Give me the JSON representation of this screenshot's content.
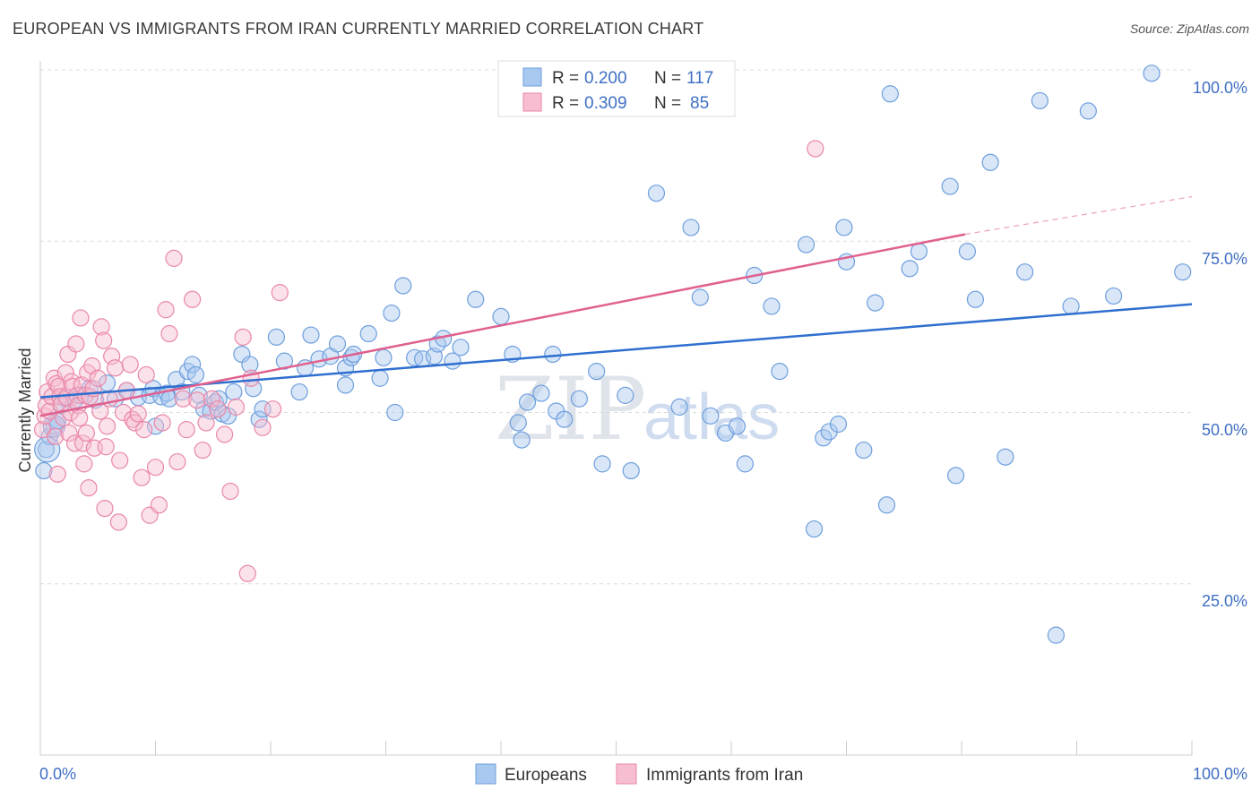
{
  "title": "EUROPEAN VS IMMIGRANTS FROM IRAN CURRENTLY MARRIED CORRELATION CHART",
  "source": "Source: ZipAtlas.com",
  "watermark": {
    "part1": "ZIP",
    "part2": "atlas"
  },
  "legend_top": {
    "rows": [
      {
        "r_label": "R = ",
        "r_value": "0.200",
        "n_label": "N = ",
        "n_value": "117",
        "color": "#a9c8f0"
      },
      {
        "r_label": "R = ",
        "r_value": "0.309",
        "n_label": "N = ",
        "n_value": "85",
        "color": "#f7bdd0"
      }
    ]
  },
  "legend_bottom": {
    "items": [
      "Europeans",
      "Immigrants from Iran"
    ]
  },
  "colors": {
    "blue_fill": "#a9c8f0",
    "blue_stroke": "#6e9fdc",
    "blue_line": "#2f6fcf",
    "pink_fill": "#f7bdd0",
    "pink_stroke": "#e987a8",
    "pink_line": "#e0608f"
  },
  "chart_data": {
    "type": "scatter",
    "title": "EUROPEAN VS IMMIGRANTS FROM IRAN CURRENTLY MARRIED CORRELATION CHART",
    "xlabel": "",
    "ylabel": "Currently Married",
    "xlim": [
      0,
      100
    ],
    "ylim": [
      0,
      100
    ],
    "x_tick_labels": [
      "0.0%",
      "100.0%"
    ],
    "y_tick_labels": [
      "25.0%",
      "50.0%",
      "75.0%",
      "100.0%"
    ],
    "y_ticks": [
      25,
      50,
      75,
      100
    ],
    "grid": true,
    "legend_position": "top-center",
    "series": [
      {
        "name": "Europeans",
        "r": 0.2,
        "n": 117,
        "trend": {
          "x": [
            0,
            100
          ],
          "y": [
            52.2,
            65.8
          ],
          "dashed_from": null
        },
        "points": [
          [
            0.3,
            41.5
          ],
          [
            0.5,
            44.6
          ],
          [
            0.8,
            46.5
          ],
          [
            1.2,
            48.0
          ],
          [
            1.5,
            48.8
          ],
          [
            1.8,
            51.0
          ],
          [
            2.2,
            52.0
          ],
          [
            3,
            51.8
          ],
          [
            3.5,
            52.5
          ],
          [
            4.3,
            53.5
          ],
          [
            4.8,
            51.8
          ],
          [
            5.8,
            54.3
          ],
          [
            6.5,
            52.0
          ],
          [
            7.5,
            53.2
          ],
          [
            8.5,
            52.2
          ],
          [
            9.5,
            52.5
          ],
          [
            9.8,
            53.5
          ],
          [
            10,
            48.0
          ],
          [
            10.5,
            52.3
          ],
          [
            11,
            52.8
          ],
          [
            11.2,
            52.0
          ],
          [
            11.8,
            54.8
          ],
          [
            12.3,
            53.0
          ],
          [
            12.8,
            56.0
          ],
          [
            13.2,
            57.0
          ],
          [
            13.5,
            55.5
          ],
          [
            13.8,
            52.5
          ],
          [
            14.2,
            50.5
          ],
          [
            14.8,
            50.2
          ],
          [
            15.2,
            51.5
          ],
          [
            15.5,
            52.0
          ],
          [
            15.8,
            49.8
          ],
          [
            16.3,
            49.5
          ],
          [
            16.8,
            53.0
          ],
          [
            17.5,
            58.5
          ],
          [
            18.2,
            57.0
          ],
          [
            18.5,
            53.5
          ],
          [
            19,
            49.0
          ],
          [
            19.3,
            50.5
          ],
          [
            20.5,
            61.0
          ],
          [
            21.2,
            57.5
          ],
          [
            22.5,
            53.0
          ],
          [
            23,
            56.5
          ],
          [
            23.5,
            61.3
          ],
          [
            24.2,
            57.8
          ],
          [
            25.2,
            58.2
          ],
          [
            25.8,
            60.0
          ],
          [
            26.5,
            56.5
          ],
          [
            27,
            58.0
          ],
          [
            26.5,
            54.0
          ],
          [
            27.2,
            58.5
          ],
          [
            28.5,
            61.5
          ],
          [
            30.5,
            64.5
          ],
          [
            30.8,
            50.0
          ],
          [
            29.5,
            55.0
          ],
          [
            29.8,
            58.0
          ],
          [
            31.5,
            68.5
          ],
          [
            32.5,
            58.0
          ],
          [
            33.2,
            57.8
          ],
          [
            34.2,
            58.2
          ],
          [
            34.5,
            60.0
          ],
          [
            35,
            60.8
          ],
          [
            35.8,
            57.5
          ],
          [
            36.5,
            59.5
          ],
          [
            37.8,
            66.5
          ],
          [
            40,
            64.0
          ],
          [
            41,
            58.5
          ],
          [
            41.5,
            48.5
          ],
          [
            41.8,
            46.0
          ],
          [
            42.3,
            51.5
          ],
          [
            43.5,
            52.8
          ],
          [
            44.5,
            58.5
          ],
          [
            44.8,
            50.2
          ],
          [
            45.5,
            49.0
          ],
          [
            46.8,
            52.0
          ],
          [
            48.3,
            56.0
          ],
          [
            48.8,
            42.5
          ],
          [
            50.8,
            52.5
          ],
          [
            51.3,
            41.5
          ],
          [
            53.5,
            82.0
          ],
          [
            55.5,
            50.8
          ],
          [
            56.5,
            77.0
          ],
          [
            57.3,
            66.8
          ],
          [
            58.2,
            49.5
          ],
          [
            59.5,
            47.0
          ],
          [
            60.5,
            48.0
          ],
          [
            61.2,
            42.5
          ],
          [
            62,
            70.0
          ],
          [
            63.5,
            65.5
          ],
          [
            64.2,
            56.0
          ],
          [
            66.5,
            74.5
          ],
          [
            67.2,
            33.0
          ],
          [
            68,
            46.3
          ],
          [
            68.5,
            47.2
          ],
          [
            69.3,
            48.3
          ],
          [
            69.8,
            77.0
          ],
          [
            70,
            72.0
          ],
          [
            71.5,
            44.5
          ],
          [
            72.5,
            66.0
          ],
          [
            73.5,
            36.5
          ],
          [
            73.8,
            96.5
          ],
          [
            75.5,
            71.0
          ],
          [
            76.3,
            73.5
          ],
          [
            79,
            83.0
          ],
          [
            79.5,
            40.8
          ],
          [
            80.5,
            73.5
          ],
          [
            81.2,
            66.5
          ],
          [
            82.5,
            86.5
          ],
          [
            83.8,
            43.5
          ],
          [
            85.5,
            70.5
          ],
          [
            86.8,
            95.5
          ],
          [
            88.2,
            17.5
          ],
          [
            89.5,
            65.5
          ],
          [
            91,
            94.0
          ],
          [
            93.2,
            67.0
          ],
          [
            96.5,
            99.5
          ],
          [
            99.2,
            70.5
          ]
        ]
      },
      {
        "name": "Immigrants from Iran",
        "r": 0.309,
        "n": 85,
        "trend": {
          "x": [
            0,
            80.3,
            100
          ],
          "y": [
            49.5,
            76.0,
            81.5
          ],
          "dashed_from": 80.3
        },
        "points": [
          [
            0.2,
            47.5
          ],
          [
            0.4,
            49.5
          ],
          [
            0.5,
            51.0
          ],
          [
            0.6,
            53.0
          ],
          [
            0.8,
            50.2
          ],
          [
            1,
            52.3
          ],
          [
            1.2,
            55.0
          ],
          [
            1.3,
            46.5
          ],
          [
            1.4,
            54.2
          ],
          [
            1.5,
            41.0
          ],
          [
            1.6,
            53.8
          ],
          [
            1.7,
            52.3
          ],
          [
            1.8,
            51.2
          ],
          [
            2,
            49.2
          ],
          [
            2.2,
            55.8
          ],
          [
            2.3,
            52.2
          ],
          [
            2.4,
            58.5
          ],
          [
            2.5,
            47.0
          ],
          [
            2.6,
            50.0
          ],
          [
            2.7,
            54.5
          ],
          [
            2.8,
            53.8
          ],
          [
            3,
            45.5
          ],
          [
            3.1,
            60.0
          ],
          [
            3.2,
            52.5
          ],
          [
            3.3,
            51.0
          ],
          [
            3.4,
            49.2
          ],
          [
            3.5,
            63.8
          ],
          [
            3.6,
            54.0
          ],
          [
            3.7,
            45.5
          ],
          [
            3.8,
            42.5
          ],
          [
            3.9,
            52.5
          ],
          [
            4,
            47.0
          ],
          [
            4.1,
            55.8
          ],
          [
            4.2,
            39.0
          ],
          [
            4.3,
            52.3
          ],
          [
            4.5,
            56.8
          ],
          [
            4.6,
            53.5
          ],
          [
            4.7,
            44.8
          ],
          [
            5,
            55.0
          ],
          [
            5.2,
            50.2
          ],
          [
            5.3,
            62.5
          ],
          [
            5.5,
            60.5
          ],
          [
            5.6,
            36.0
          ],
          [
            5.7,
            45.0
          ],
          [
            5.8,
            48.0
          ],
          [
            6,
            52.0
          ],
          [
            6.2,
            58.2
          ],
          [
            6.5,
            56.5
          ],
          [
            6.8,
            34.0
          ],
          [
            6.9,
            43.0
          ],
          [
            7.2,
            50.0
          ],
          [
            7.5,
            53.2
          ],
          [
            7.8,
            57.0
          ],
          [
            8,
            49.0
          ],
          [
            8.2,
            48.5
          ],
          [
            8.5,
            49.8
          ],
          [
            8.8,
            40.5
          ],
          [
            9,
            47.5
          ],
          [
            9.2,
            55.5
          ],
          [
            9.5,
            35.0
          ],
          [
            10,
            42.0
          ],
          [
            10.3,
            36.5
          ],
          [
            10.6,
            48.5
          ],
          [
            10.9,
            65.0
          ],
          [
            11.2,
            61.5
          ],
          [
            11.6,
            72.5
          ],
          [
            11.9,
            42.8
          ],
          [
            12.4,
            52.0
          ],
          [
            12.7,
            47.5
          ],
          [
            13.2,
            66.5
          ],
          [
            13.6,
            51.8
          ],
          [
            14.1,
            44.5
          ],
          [
            14.4,
            48.5
          ],
          [
            14.9,
            52.0
          ],
          [
            15.4,
            50.5
          ],
          [
            16,
            46.8
          ],
          [
            16.5,
            38.5
          ],
          [
            17,
            50.8
          ],
          [
            17.6,
            61.0
          ],
          [
            18,
            26.5
          ],
          [
            18.3,
            55.0
          ],
          [
            19.3,
            47.8
          ],
          [
            20.2,
            50.5
          ],
          [
            20.8,
            67.5
          ],
          [
            67.3,
            88.5
          ]
        ]
      }
    ]
  }
}
